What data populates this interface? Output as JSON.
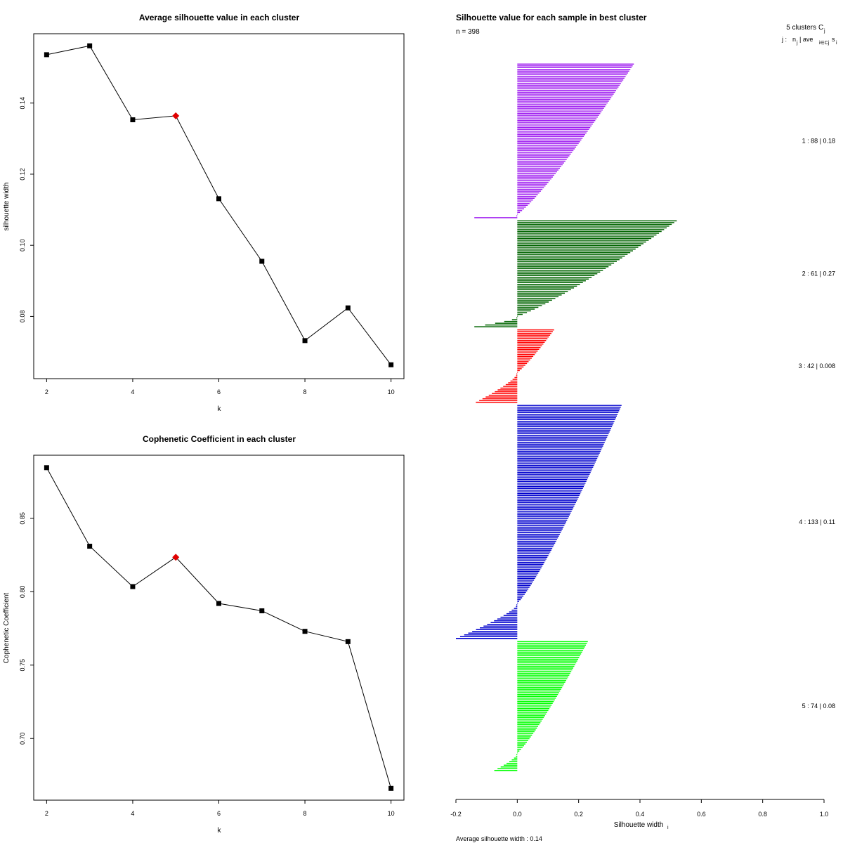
{
  "chart_data": [
    {
      "id": "avg-silhouette",
      "type": "line",
      "title": "Average silhouette value in each cluster",
      "xlabel": "k",
      "ylabel": "silhouette width",
      "x": [
        2,
        3,
        4,
        5,
        6,
        7,
        8,
        9,
        10
      ],
      "values": [
        0.1536,
        0.1561,
        0.1353,
        0.1364,
        0.1131,
        0.0955,
        0.0732,
        0.0824,
        0.0664
      ],
      "highlight_index": 3,
      "highlight_color": "#e00000",
      "xticks": [
        "2",
        "4",
        "6",
        "8",
        "10"
      ],
      "yticks": [
        "0.08",
        "0.10",
        "0.12",
        "0.14"
      ],
      "xlim": [
        1.7,
        10.3
      ],
      "ylim": [
        0.0625,
        0.1595
      ]
    },
    {
      "id": "cophenetic",
      "type": "line",
      "title": "Cophenetic Coefficient in each cluster",
      "xlabel": "k",
      "ylabel": "Cophenetic Coefficient",
      "x": [
        2,
        3,
        4,
        5,
        6,
        7,
        8,
        9,
        10
      ],
      "values": [
        0.8845,
        0.831,
        0.8035,
        0.8235,
        0.792,
        0.787,
        0.773,
        0.766,
        0.666
      ],
      "highlight_index": 3,
      "highlight_color": "#e00000",
      "xticks": [
        "2",
        "4",
        "6",
        "8",
        "10"
      ],
      "yticks": [
        "0.70",
        "0.75",
        "0.80",
        "0.85"
      ],
      "xlim": [
        1.7,
        10.3
      ],
      "ylim": [
        0.658,
        0.893
      ]
    },
    {
      "id": "silhouette-plot",
      "type": "bar",
      "orientation": "horizontal",
      "title": "Silhouette value for each sample in best cluster",
      "n_label": "n = 398",
      "header_main": "5 clusters",
      "header_sym": "C",
      "header_sub": "j",
      "legend_j": "j :",
      "legend_n": "n",
      "legend_n_sub": "j",
      "legend_ave": " | ave",
      "legend_ave_sub": "i∈Cj",
      "legend_s": "s",
      "legend_s_sub": "i",
      "xlabel": "Silhouette width",
      "xlabel_sub": "i",
      "footer": "Average silhouette width :  0.14",
      "xlim": [
        -0.2,
        1.0
      ],
      "xticks": [
        "-0.2",
        "0.0",
        "0.2",
        "0.4",
        "0.6",
        "0.8",
        "1.0"
      ],
      "clusters": [
        {
          "j": "1",
          "n": 88,
          "ave": "0.18",
          "label": "1 :   88  |  0.18",
          "color": "#a020f0",
          "max": 0.38,
          "min": -0.14,
          "neg": 2
        },
        {
          "j": "2",
          "n": 61,
          "ave": "0.27",
          "label": "2 :   61  |  0.27",
          "color": "#006400",
          "max": 0.52,
          "min": -0.14,
          "neg": 6
        },
        {
          "j": "3",
          "n": 42,
          "ave": "0.008",
          "label": "3 :   42  |  0.008",
          "color": "#ff0000",
          "max": 0.12,
          "min": -0.135,
          "neg": 17
        },
        {
          "j": "4",
          "n": 133,
          "ave": "0.11",
          "label": "4 :   133  |  0.11",
          "color": "#0000cd",
          "max": 0.34,
          "min": -0.2,
          "neg": 20
        },
        {
          "j": "5",
          "n": 74,
          "ave": "0.08",
          "label": "5 :   74  |  0.08",
          "color": "#00ff00",
          "max": 0.23,
          "min": -0.075,
          "neg": 10
        }
      ]
    }
  ]
}
